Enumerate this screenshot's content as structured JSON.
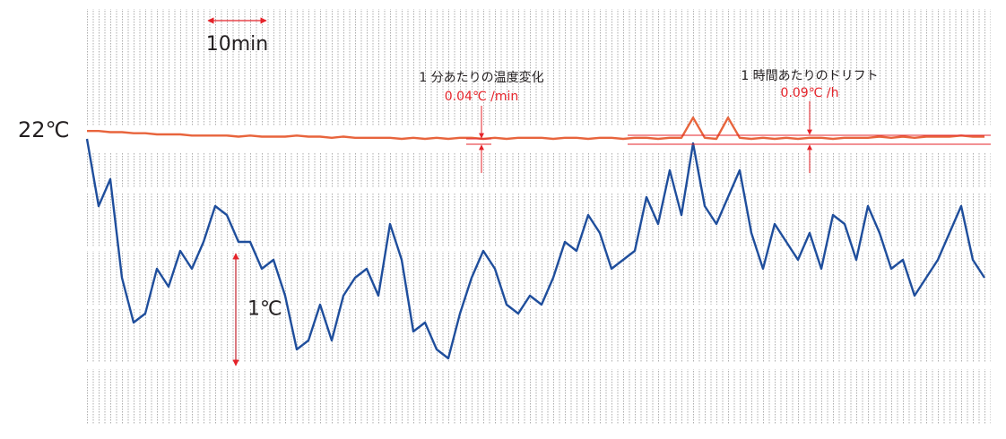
{
  "chart_data": {
    "type": "line",
    "x": [
      0,
      2,
      4,
      6,
      8,
      10,
      12,
      14,
      16,
      18,
      20,
      22,
      24,
      26,
      28,
      30,
      32,
      34,
      36,
      38,
      40,
      42,
      44,
      46,
      48,
      50,
      52,
      54,
      56,
      58,
      60,
      62,
      64,
      66,
      68,
      70,
      72,
      74,
      76,
      78,
      80,
      82,
      84,
      86,
      88,
      90,
      92,
      94,
      96,
      98,
      100,
      102,
      104,
      106,
      108,
      110,
      112,
      114,
      116,
      118,
      120,
      122,
      124,
      126,
      128,
      130,
      132,
      134,
      136,
      138,
      140,
      142,
      144,
      146,
      148,
      150,
      152,
      154
    ],
    "series": [
      {
        "color": "#e8643c",
        "values": [
          22.03,
          22.03,
          22.02,
          22.02,
          22.01,
          22.01,
          22.0,
          22.0,
          22.0,
          21.99,
          21.99,
          21.99,
          21.99,
          21.98,
          21.99,
          21.98,
          21.98,
          21.98,
          21.99,
          21.98,
          21.98,
          21.97,
          21.98,
          21.97,
          21.97,
          21.97,
          21.97,
          21.96,
          21.97,
          21.96,
          21.97,
          21.96,
          21.97,
          21.97,
          21.96,
          21.97,
          21.96,
          21.97,
          21.97,
          21.97,
          21.96,
          21.97,
          21.97,
          21.96,
          21.97,
          21.97,
          21.96,
          21.97,
          21.97,
          21.96,
          21.97,
          21.97,
          22.15,
          21.97,
          21.96,
          22.15,
          21.97,
          21.96,
          21.97,
          21.96,
          21.97,
          21.96,
          21.97,
          21.97,
          21.96,
          21.97,
          21.97,
          21.97,
          21.98,
          21.97,
          21.98,
          21.97,
          21.98,
          21.98,
          21.98,
          21.99,
          21.98,
          21.98
        ]
      },
      {
        "color": "#1f4e9c",
        "values": [
          21.96,
          21.36,
          21.6,
          20.72,
          20.32,
          20.4,
          20.8,
          20.64,
          20.96,
          20.8,
          21.04,
          21.36,
          21.28,
          21.04,
          21.04,
          20.8,
          20.88,
          20.56,
          20.08,
          20.16,
          20.48,
          20.16,
          20.56,
          20.72,
          20.8,
          20.56,
          21.2,
          20.88,
          20.24,
          20.32,
          20.08,
          20.0,
          20.4,
          20.72,
          20.96,
          20.8,
          20.48,
          20.4,
          20.56,
          20.48,
          20.72,
          21.04,
          20.96,
          21.28,
          21.12,
          20.8,
          20.88,
          20.96,
          21.44,
          21.2,
          21.68,
          21.28,
          21.92,
          21.36,
          21.2,
          21.44,
          21.68,
          21.12,
          20.8,
          21.2,
          21.04,
          20.88,
          21.12,
          20.8,
          21.28,
          21.2,
          20.88,
          21.36,
          21.12,
          20.8,
          20.88,
          20.56,
          20.72,
          20.88,
          21.12,
          21.36,
          20.88,
          20.72
        ]
      }
    ],
    "reference": {
      "value": 22,
      "label": "22℃"
    },
    "time_scale": {
      "value": 10,
      "label": "10min"
    },
    "temp_scale": {
      "value": 1,
      "label": "1℃"
    },
    "annotations": [
      {
        "title": "1 分あたりの温度変化",
        "label": "0.04℃ /min"
      },
      {
        "title": "1 時間あたりのドリフト",
        "label": "0.09℃ /h"
      }
    ]
  }
}
